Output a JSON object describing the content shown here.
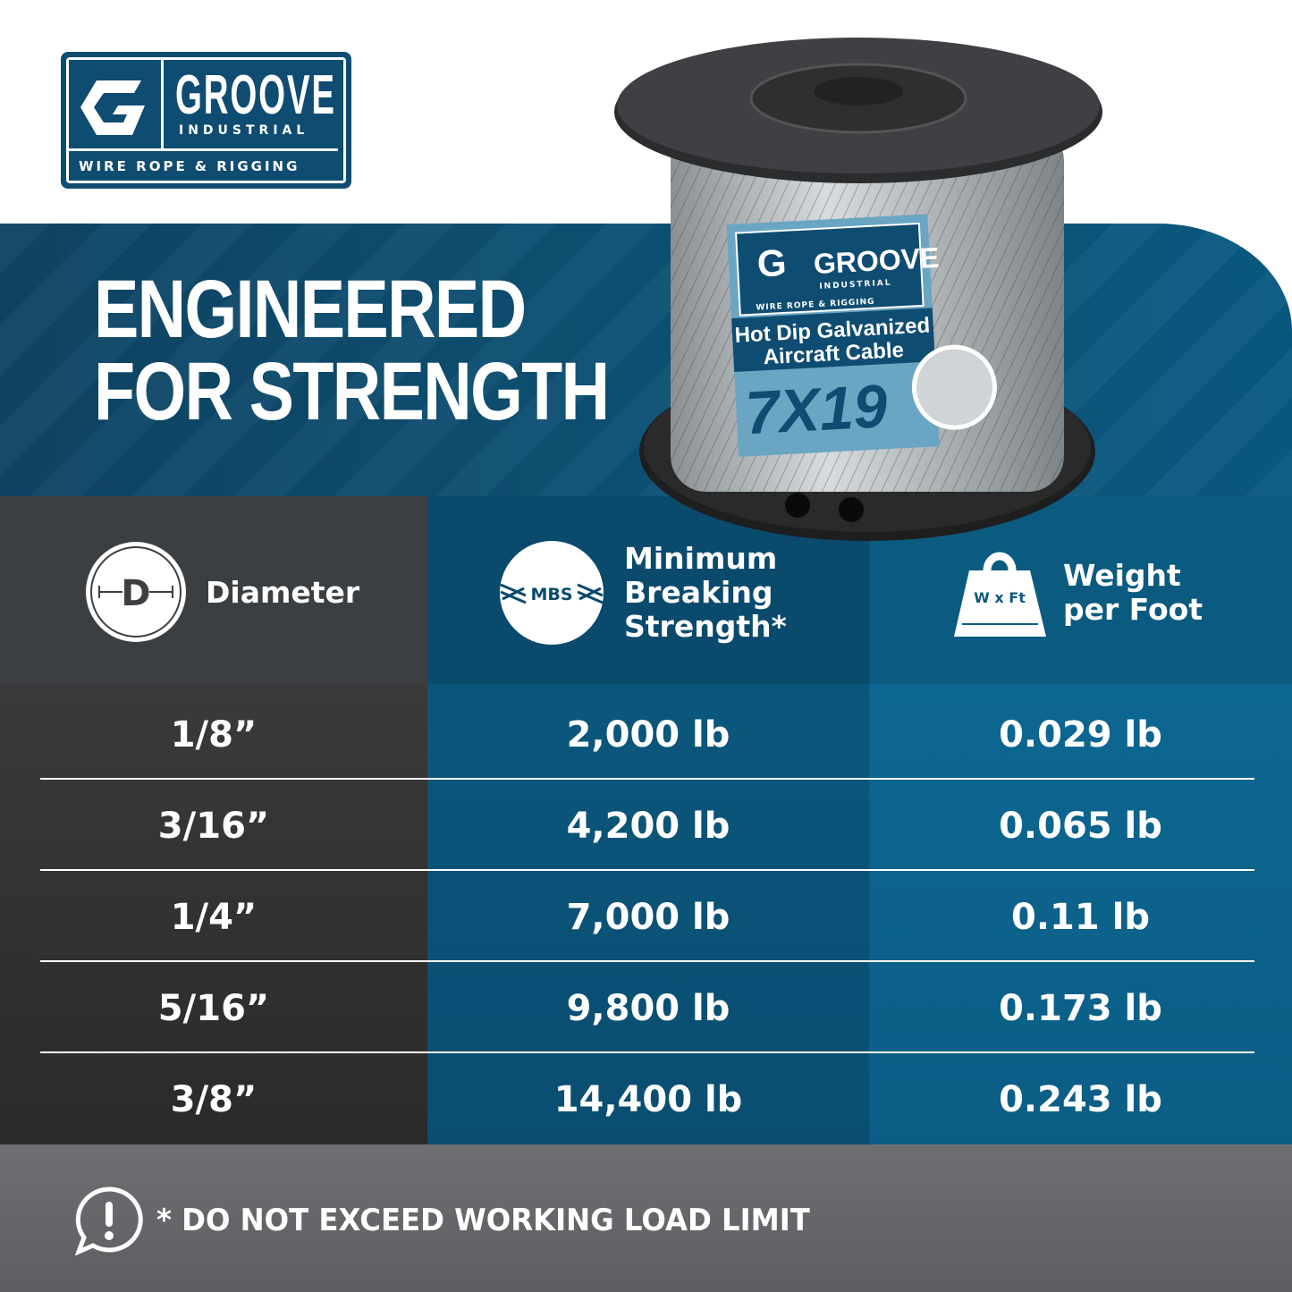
{
  "brand": {
    "name": "GROOVE",
    "sub": "INDUSTRIAL",
    "tagline": "WIRE ROPE & RIGGING",
    "color": "#0f4c72"
  },
  "headline": [
    "ENGINEERED",
    "FOR STRENGTH"
  ],
  "product_label": {
    "brand": "GROOVE",
    "sub": "INDUSTRIAL",
    "tagline": "WIRE ROPE & RIGGING",
    "line1": "Hot Dip Galvanized",
    "line2": "Aircraft Cable",
    "construction": "7X19"
  },
  "columns": [
    {
      "icon": "diameter-icon",
      "icon_text": "D",
      "label": "Diameter"
    },
    {
      "icon": "mbs-icon",
      "icon_text": "MBS",
      "label_lines": [
        "Minimum",
        "Breaking",
        "Strength*"
      ]
    },
    {
      "icon": "weight-icon",
      "icon_text": "W x Ft",
      "label_lines": [
        "Weight",
        "per Foot"
      ]
    }
  ],
  "rows": [
    [
      "1/8”",
      "2,000 lb",
      "0.029 lb"
    ],
    [
      "3/16”",
      "4,200 lb",
      "0.065 lb"
    ],
    [
      "1/4”",
      "7,000 lb",
      "0.11 lb"
    ],
    [
      "5/16”",
      "9,800 lb",
      "0.173 lb"
    ],
    [
      "3/8”",
      "14,400 lb",
      "0.243 lb"
    ]
  ],
  "footer": {
    "icon": "alert-icon",
    "text": "* DO NOT EXCEED WORKING LOAD LIMIT"
  }
}
